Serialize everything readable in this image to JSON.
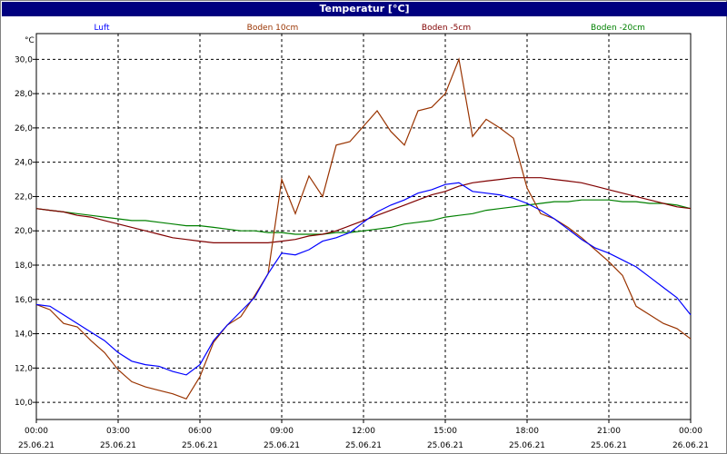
{
  "window": {
    "title": "Temperatur [°C]"
  },
  "chart_data": {
    "type": "line",
    "title": "Temperatur [°C]",
    "ylabel": "°C",
    "xlabel": "",
    "grid": true,
    "ylim": [
      9,
      31.5
    ],
    "yticks": [
      "10,0",
      "12,0",
      "14,0",
      "16,0",
      "18,0",
      "20,0",
      "22,0",
      "24,0",
      "26,0",
      "28,0",
      "30,0"
    ],
    "xticks": [
      {
        "time": "00:00",
        "date": "25.06.21"
      },
      {
        "time": "03:00",
        "date": "25.06.21"
      },
      {
        "time": "06:00",
        "date": "25.06.21"
      },
      {
        "time": "09:00",
        "date": "25.06.21"
      },
      {
        "time": "12:00",
        "date": "25.06.21"
      },
      {
        "time": "15:00",
        "date": "25.06.21"
      },
      {
        "time": "18:00",
        "date": "25.06.21"
      },
      {
        "time": "21:00",
        "date": "25.06.21"
      },
      {
        "time": "00:00",
        "date": "26.06.21"
      }
    ],
    "x_hours": [
      0,
      0.5,
      1,
      1.5,
      2,
      2.5,
      3,
      3.5,
      4,
      4.5,
      5,
      5.5,
      6,
      6.5,
      7,
      7.5,
      8,
      8.5,
      9,
      9.5,
      10,
      10.5,
      11,
      11.5,
      12,
      12.5,
      13,
      13.5,
      14,
      14.5,
      15,
      15.5,
      16,
      16.5,
      17,
      17.5,
      18,
      18.5,
      19,
      19.5,
      20,
      20.5,
      21,
      21.5,
      22,
      22.5,
      23,
      23.5,
      24
    ],
    "series": [
      {
        "name": "Luft",
        "color": "#0000ff",
        "values": [
          15.7,
          15.6,
          15.1,
          14.6,
          14.1,
          13.6,
          12.9,
          12.4,
          12.2,
          12.1,
          11.8,
          11.6,
          12.2,
          13.6,
          14.5,
          15.3,
          16.1,
          17.5,
          18.7,
          18.6,
          18.9,
          19.4,
          19.6,
          19.9,
          20.5,
          21.1,
          21.5,
          21.8,
          22.2,
          22.4,
          22.7,
          22.8,
          22.3,
          22.2,
          22.1,
          21.9,
          21.6,
          21.2,
          20.7,
          20.1,
          19.5,
          19.0,
          18.7,
          18.3,
          17.9,
          17.3,
          16.7,
          16.1,
          15.1
        ]
      },
      {
        "name": "Boden 10cm",
        "color": "#993300",
        "values": [
          15.7,
          15.4,
          14.6,
          14.4,
          13.6,
          12.9,
          11.9,
          11.2,
          10.9,
          10.7,
          10.5,
          10.2,
          11.5,
          13.5,
          14.5,
          15.0,
          16.2,
          17.5,
          23.0,
          21.0,
          23.2,
          22.0,
          25.0,
          25.2,
          26.1,
          27.0,
          25.8,
          25.0,
          27.0,
          27.2,
          28.0,
          30.0,
          25.5,
          26.5,
          26.0,
          25.4,
          22.5,
          21.0,
          20.7,
          20.2,
          19.6,
          18.9,
          18.2,
          17.4,
          15.6,
          15.1,
          14.6,
          14.3,
          13.7
        ]
      },
      {
        "name": "Boden -5cm",
        "color": "#800000",
        "values": [
          21.3,
          21.2,
          21.1,
          20.9,
          20.8,
          20.6,
          20.4,
          20.2,
          20.0,
          19.8,
          19.6,
          19.5,
          19.4,
          19.3,
          19.3,
          19.3,
          19.3,
          19.3,
          19.4,
          19.5,
          19.7,
          19.8,
          20.0,
          20.3,
          20.6,
          20.9,
          21.2,
          21.5,
          21.8,
          22.1,
          22.3,
          22.6,
          22.8,
          22.9,
          23.0,
          23.1,
          23.1,
          23.1,
          23.0,
          22.9,
          22.8,
          22.6,
          22.4,
          22.2,
          22.0,
          21.8,
          21.6,
          21.4,
          21.3
        ]
      },
      {
        "name": "Boden -20cm",
        "color": "#008000",
        "values": [
          21.3,
          21.2,
          21.1,
          21.0,
          20.9,
          20.8,
          20.7,
          20.6,
          20.6,
          20.5,
          20.4,
          20.3,
          20.3,
          20.2,
          20.1,
          20.0,
          20.0,
          19.9,
          19.9,
          19.8,
          19.8,
          19.8,
          19.9,
          19.9,
          20.0,
          20.1,
          20.2,
          20.4,
          20.5,
          20.6,
          20.8,
          20.9,
          21.0,
          21.2,
          21.3,
          21.4,
          21.5,
          21.6,
          21.7,
          21.7,
          21.8,
          21.8,
          21.8,
          21.7,
          21.7,
          21.6,
          21.6,
          21.5,
          21.3
        ]
      }
    ]
  }
}
